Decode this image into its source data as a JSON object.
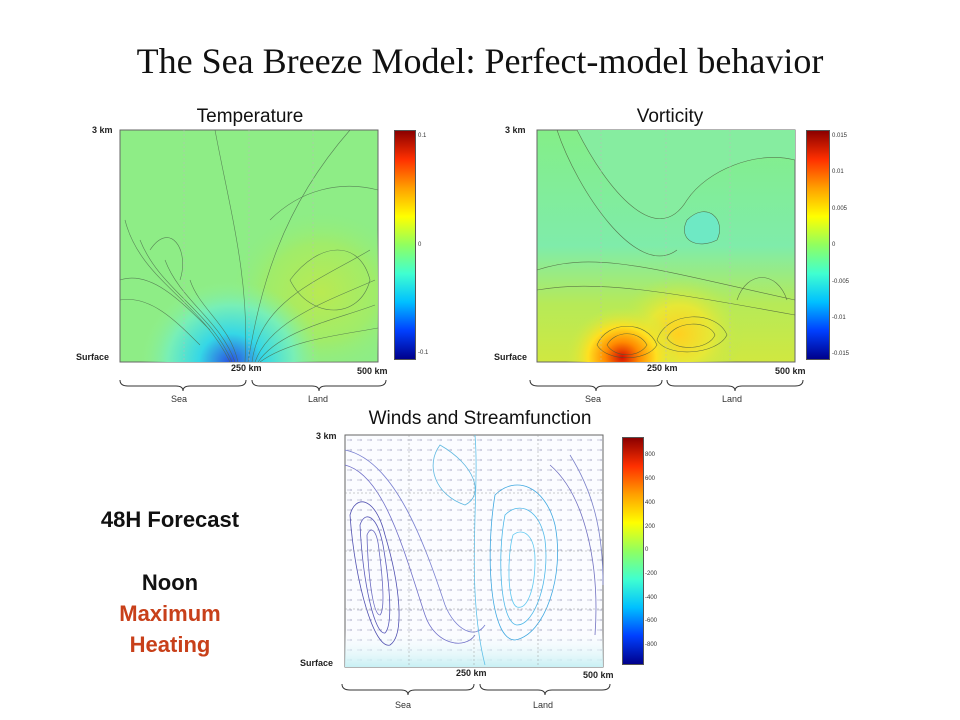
{
  "title": "The Sea Breeze Model: Perfect-model behavior",
  "panels": {
    "temperature": {
      "title": "Temperature",
      "colorbar_ticks": [
        "0.1",
        "0",
        "-0.1"
      ]
    },
    "vorticity": {
      "title": "Vorticity",
      "colorbar_ticks": [
        "0.015",
        "0.01",
        "0.005",
        "0",
        "-0.005",
        "-0.01",
        "-0.015"
      ]
    },
    "winds": {
      "title": "Winds and Streamfunction",
      "colorbar_ticks": [
        "800",
        "600",
        "400",
        "200",
        "0",
        "-200",
        "-400",
        "-600",
        "-800"
      ]
    }
  },
  "axes": {
    "top": "3 km",
    "bottom": "Surface",
    "mid_x": "250 km",
    "end_x": "500 km",
    "sea": "Sea",
    "land": "Land"
  },
  "side_note": {
    "forecast": "48H Forecast",
    "time": "Noon",
    "heating_line1": "Maximum",
    "heating_line2": "Heating",
    "heating_color": "#c8401a"
  }
}
